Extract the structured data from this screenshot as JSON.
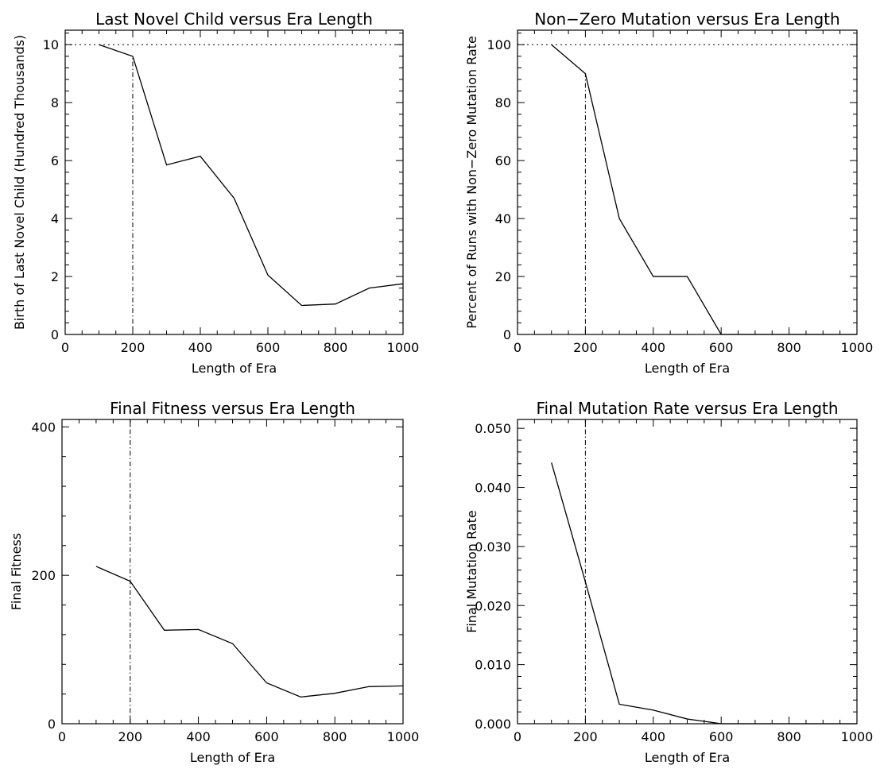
{
  "chart_data": [
    {
      "type": "line",
      "title": "Last Novel Child versus Era Length",
      "xlabel": "Length of Era",
      "ylabel": "Birth of Last Novel Child (Hundred Thousands)",
      "xlim": [
        0,
        1000
      ],
      "ylim": [
        0,
        10.5
      ],
      "xticks": [
        0,
        200,
        400,
        600,
        800,
        1000
      ],
      "yticks": [
        0,
        2,
        4,
        6,
        8,
        10
      ],
      "ytick_labels": [
        "0",
        "2",
        "4",
        "6",
        "8",
        "10"
      ],
      "series": [
        {
          "x": [
            100,
            200,
            300,
            400,
            500,
            600,
            700,
            800,
            900,
            1000
          ],
          "y": [
            10.0,
            9.6,
            5.85,
            6.15,
            4.7,
            2.05,
            1.0,
            1.05,
            1.6,
            1.75
          ]
        }
      ],
      "reference_lines": [
        {
          "orientation": "horizontal",
          "value": 10,
          "style": "dotted"
        },
        {
          "orientation": "vertical",
          "value": 200,
          "to": 9.6,
          "style": "dash-dot"
        }
      ]
    },
    {
      "type": "line",
      "title": "Non−Zero Mutation versus Era Length",
      "xlabel": "Length of Era",
      "ylabel": "Percent of Runs with Non−Zero Mutation Rate",
      "xlim": [
        0,
        1000
      ],
      "ylim": [
        0,
        105
      ],
      "xticks": [
        0,
        200,
        400,
        600,
        800,
        1000
      ],
      "yticks": [
        0,
        20,
        40,
        60,
        80,
        100
      ],
      "ytick_labels": [
        "0",
        "20",
        "40",
        "60",
        "80",
        "100"
      ],
      "series": [
        {
          "x": [
            100,
            200,
            300,
            400,
            500,
            600,
            700,
            800,
            900,
            1000
          ],
          "y": [
            100,
            90,
            40,
            20,
            20,
            0,
            0,
            0,
            0,
            0
          ]
        }
      ],
      "reference_lines": [
        {
          "orientation": "horizontal",
          "value": 100,
          "style": "dotted"
        },
        {
          "orientation": "vertical",
          "value": 200,
          "to": 90,
          "style": "dash-dot"
        }
      ]
    },
    {
      "type": "line",
      "title": "Final Fitness versus Era Length",
      "xlabel": "Length of Era",
      "ylabel": "Final Fitness",
      "xlim": [
        0,
        1000
      ],
      "ylim": [
        0,
        410
      ],
      "xticks": [
        0,
        200,
        400,
        600,
        800,
        1000
      ],
      "yticks": [
        0,
        200,
        400
      ],
      "ytick_labels": [
        "0",
        "200",
        "400"
      ],
      "series": [
        {
          "x": [
            100,
            200,
            300,
            400,
            500,
            600,
            700,
            800,
            900,
            1000
          ],
          "y": [
            212,
            192,
            126,
            127,
            108,
            55,
            36,
            41,
            50,
            51
          ]
        }
      ],
      "reference_lines": [
        {
          "orientation": "vertical",
          "value": 200,
          "to": 410,
          "style": "dash-dot"
        }
      ]
    },
    {
      "type": "line",
      "title": "Final Mutation Rate versus Era Length",
      "xlabel": "Length of Era",
      "ylabel": "Final Mutation Rate",
      "xlim": [
        0,
        1000
      ],
      "ylim": [
        0,
        0.0515
      ],
      "xticks": [
        0,
        200,
        400,
        600,
        800,
        1000
      ],
      "yticks": [
        0,
        0.01,
        0.02,
        0.03,
        0.04,
        0.05
      ],
      "ytick_labels": [
        "0.000",
        "0.010",
        "0.020",
        "0.030",
        "0.040",
        "0.050"
      ],
      "series": [
        {
          "x": [
            100,
            200,
            300,
            400,
            500,
            600,
            700,
            800,
            900,
            1000
          ],
          "y": [
            0.0442,
            0.024,
            0.0033,
            0.0023,
            0.0008,
            0,
            0,
            0,
            0,
            0
          ]
        }
      ],
      "reference_lines": [
        {
          "orientation": "vertical",
          "value": 200,
          "to": 0.0515,
          "style": "dash-dot"
        }
      ]
    }
  ]
}
